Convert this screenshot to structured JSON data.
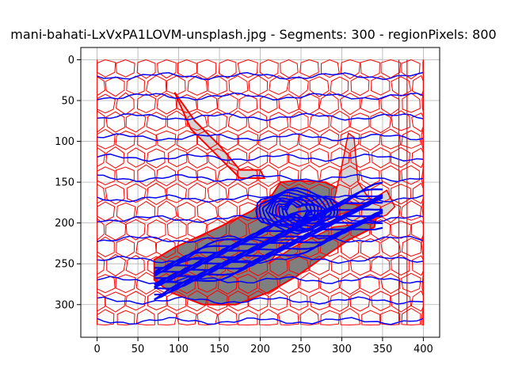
{
  "chart_data": {
    "type": "image-plot",
    "title": "mani-bahati-LxVxPA1LOVM-unsplash.jpg - Segments: 300 - regionPixels: 800",
    "xlabel": "",
    "ylabel": "",
    "xlim": [
      -20,
      420
    ],
    "ylim": [
      340,
      -15
    ],
    "x_ticks": [
      0,
      50,
      100,
      150,
      200,
      250,
      300,
      350,
      400
    ],
    "y_ticks": [
      0,
      50,
      100,
      150,
      200,
      250,
      300
    ],
    "grid": true,
    "image_extent": {
      "x": [
        0,
        400
      ],
      "y": [
        0,
        325
      ]
    },
    "colors": {
      "segment_boundaries": "#ff0000",
      "contours": "#0000ff",
      "grid": "#b0b0b0",
      "shoe_fill": "#7f7f7f",
      "shoe_light": "#d3d3d3",
      "axes": "#000000"
    }
  }
}
